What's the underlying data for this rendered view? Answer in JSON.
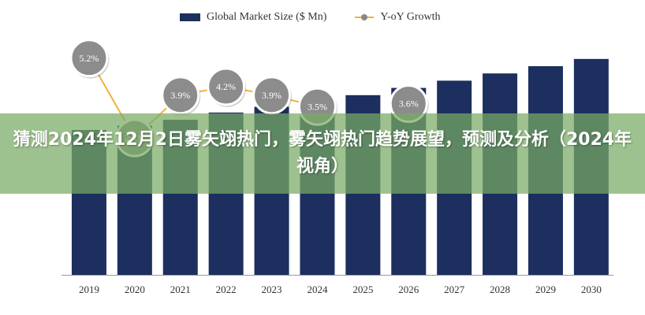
{
  "legend": {
    "bar_label": "Global Market Size ($ Mn)",
    "line_label": "Y-oY Growth"
  },
  "banner": {
    "headline": "猜测2024年12月2日雾矢翊热门，雾矢翊热门趋势展望，预测及分析（2024年视角）"
  },
  "colors": {
    "bar": "#1c2f5e",
    "line": "#f0b23c",
    "marker_fill": "#8c8c8c",
    "banner": "#78aa64"
  },
  "chart_data": {
    "type": "bar",
    "categories": [
      "2019",
      "2020",
      "2021",
      "2022",
      "2023",
      "2024",
      "2025",
      "2026",
      "2027",
      "2028",
      "2029",
      "2030"
    ],
    "series": [
      {
        "name": "Global Market Size ($ Mn)",
        "type": "bar",
        "values": [
          100,
          103,
          107,
          112,
          116,
          120,
          124,
          129,
          134,
          139,
          144,
          149
        ]
      },
      {
        "name": "Y-oY Growth",
        "type": "line",
        "unit": "%",
        "values": [
          5.2,
          2.4,
          3.9,
          4.2,
          3.9,
          3.5,
          null,
          3.6,
          null,
          null,
          null,
          null
        ]
      }
    ],
    "data_labels": [
      "5.2%",
      "2.4%",
      "3.9%",
      "4.2%",
      "3.9%",
      "3.5%",
      "",
      "3.6%",
      "",
      "",
      "",
      ""
    ],
    "title": "",
    "xlabel": "",
    "ylabel": "",
    "legend_position": "top",
    "grid": false
  }
}
